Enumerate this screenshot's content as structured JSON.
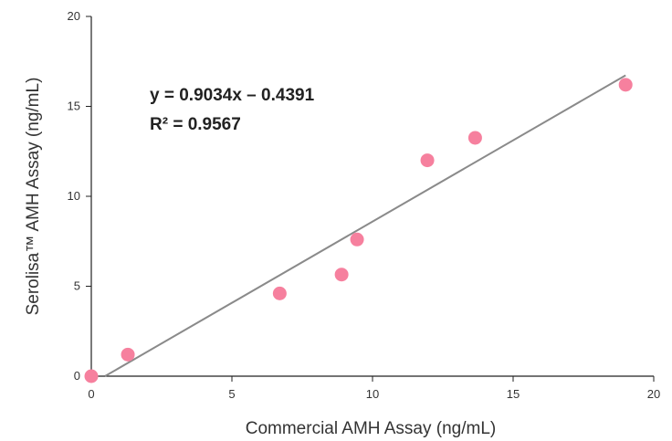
{
  "chart_data": {
    "type": "scatter",
    "xlabel": "Commercial AMH Assay (ng/mL)",
    "ylabel": "Serolisa™ AMH Assay (ng/mL)",
    "xlim": [
      0,
      20
    ],
    "ylim": [
      0,
      20
    ],
    "x_ticks": [
      "0",
      "5",
      "10",
      "15",
      "20"
    ],
    "y_ticks": [
      "0",
      "5",
      "10",
      "15",
      "20"
    ],
    "grid": false,
    "points": [
      {
        "x": 0,
        "y": 0
      },
      {
        "x": 1.3,
        "y": 1.2
      },
      {
        "x": 6.7,
        "y": 4.6
      },
      {
        "x": 8.9,
        "y": 5.65
      },
      {
        "x": 9.45,
        "y": 7.6
      },
      {
        "x": 11.95,
        "y": 12.0
      },
      {
        "x": 13.65,
        "y": 13.25
      },
      {
        "x": 19.0,
        "y": 16.2
      }
    ],
    "trendline": {
      "slope": 0.9034,
      "intercept": -0.4391,
      "x_range": [
        0.486,
        19.0
      ]
    },
    "annotations": [
      "y = 0.9034x – 0.4391",
      "R² = 0.9567"
    ],
    "colors": {
      "points": "#f6809e",
      "trendline": "#8a8a8a",
      "axes": "#222222"
    }
  }
}
